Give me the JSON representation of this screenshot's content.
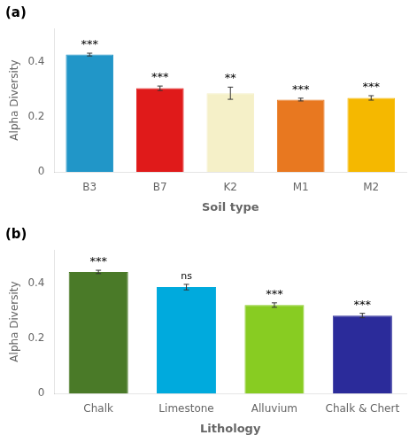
{
  "chart_data": [
    {
      "type": "bar",
      "title": "(a)",
      "categories": [
        "B3",
        "B7",
        "K2",
        "M1",
        "M2"
      ],
      "values": [
        0.425,
        0.303,
        0.285,
        0.262,
        0.268
      ],
      "errors": [
        0.005,
        0.008,
        0.022,
        0.005,
        0.008
      ],
      "colors": [
        "#2196C8",
        "#E01A1A",
        "#F5F0C8",
        "#E87820",
        "#F5B800"
      ],
      "annotations": [
        "***",
        "***",
        "**",
        "***",
        "***"
      ],
      "xlabel": "Soil type",
      "ylabel": "Alpha Diversity",
      "ylim": [
        0,
        0.52
      ],
      "yticks": [
        0,
        0.2,
        0.4
      ],
      "grid": false
    },
    {
      "type": "bar",
      "title": "(b)",
      "categories": [
        "Chalk",
        "Limestone",
        "Alluvium",
        "Chalk & Chert"
      ],
      "values": [
        0.44,
        0.385,
        0.32,
        0.282
      ],
      "errors": [
        0.006,
        0.01,
        0.008,
        0.008
      ],
      "colors": [
        "#4A7A28",
        "#00AADD",
        "#88CC22",
        "#2B2B9A"
      ],
      "annotations": [
        "***",
        "ns",
        "***",
        "***"
      ],
      "xlabel": "Lithology",
      "ylabel": "Alpha Diversity",
      "ylim": [
        0,
        0.52
      ],
      "yticks": [
        0,
        0.2,
        0.4
      ],
      "grid": false
    }
  ]
}
